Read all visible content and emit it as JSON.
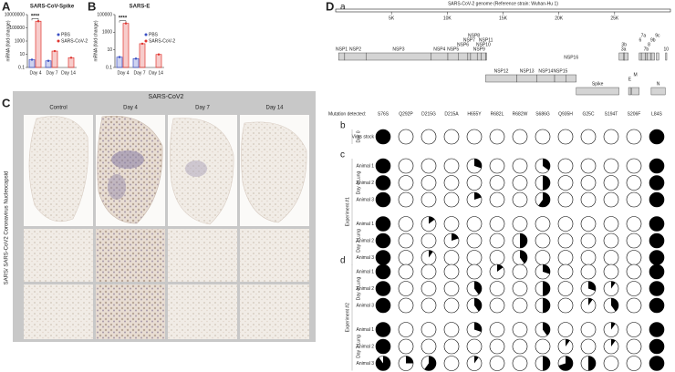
{
  "panel_labels": [
    "A",
    "B",
    "C",
    "D"
  ],
  "charts": [
    {
      "type": "bar",
      "title": "SARS-CoV-Spike",
      "ylabel": "mRNA (fold change)",
      "log": true,
      "categories": [
        "Day 4",
        "Day 7",
        "Day 14"
      ],
      "series": [
        {
          "name": "PBS",
          "color": "#3a4fc4",
          "values": [
            1.5,
            1,
            null
          ]
        },
        {
          "name": "SARS-CoV-2",
          "color": "#e0352f",
          "values": [
            1000000,
            30,
            3
          ]
        }
      ],
      "ylim": [
        0.1,
        10000000
      ],
      "yticks": [
        0.1,
        10,
        1000,
        100000,
        10000000
      ],
      "significance": "****"
    },
    {
      "type": "bar",
      "title": "SARS-E",
      "ylabel": "mRNA (fold change)",
      "log": true,
      "categories": [
        "Day 4",
        "Day 7",
        "Day 14"
      ],
      "series": [
        {
          "name": "PBS",
          "color": "#3a4fc4",
          "values": [
            1.5,
            1,
            null
          ]
        },
        {
          "name": "SARS-CoV-2",
          "color": "#e0352f",
          "values": [
            10000,
            50,
            3
          ]
        }
      ],
      "ylim": [
        0.1,
        100000
      ],
      "yticks": [
        0.1,
        10,
        1000,
        100000
      ],
      "significance": "****"
    }
  ],
  "histology": {
    "title": "SARS-CoV2",
    "columns": [
      "Control",
      "Day 4",
      "Day 7",
      "Day 14"
    ],
    "side_label": "SARS/ SARS-CoV2 Coronavirus Nucleocapsid"
  },
  "genome": {
    "label": "a",
    "title": "SARS-CoV-2 genome (Reference strain: Wuhan-Hu 1)",
    "xlim": [
      0,
      30000
    ],
    "xticks": [
      {
        "value": 5000,
        "label": "5K"
      },
      {
        "value": 10000,
        "label": "10K"
      },
      {
        "value": 15000,
        "label": "15K"
      },
      {
        "value": 20000,
        "label": "20K"
      },
      {
        "value": 25000,
        "label": "25K"
      }
    ],
    "genes": [
      {
        "name": "NSP1",
        "start": 266,
        "end": 805
      },
      {
        "name": "NSP2",
        "start": 806,
        "end": 2719
      },
      {
        "name": "NSP3",
        "start": 2720,
        "end": 8554
      },
      {
        "name": "NSP4",
        "start": 8555,
        "end": 10054
      },
      {
        "name": "NSP5",
        "start": 10055,
        "end": 10972
      },
      {
        "name": "NSP6",
        "start": 10973,
        "end": 11842
      },
      {
        "name": "NSP7",
        "start": 11843,
        "end": 12091
      },
      {
        "name": "NSP8",
        "start": 12092,
        "end": 12685
      },
      {
        "name": "NSP9",
        "start": 12686,
        "end": 13024
      },
      {
        "name": "NSP10",
        "start": 13025,
        "end": 13441
      },
      {
        "name": "NSP11",
        "start": 13442,
        "end": 13480
      },
      {
        "name": "NSP12",
        "start": 13442,
        "end": 16236
      },
      {
        "name": "NSP13",
        "start": 16237,
        "end": 18039
      },
      {
        "name": "NSP14",
        "start": 18040,
        "end": 19620
      },
      {
        "name": "NSP15",
        "start": 19621,
        "end": 20658
      },
      {
        "name": "NSP16",
        "start": 20659,
        "end": 21552
      },
      {
        "name": "Spike",
        "start": 21563,
        "end": 25384
      },
      {
        "name": "E",
        "start": 26245,
        "end": 26472
      },
      {
        "name": "M",
        "start": 26523,
        "end": 27191
      },
      {
        "name": "N",
        "start": 28274,
        "end": 29533
      },
      {
        "name": "3a",
        "start": 25393,
        "end": 26220
      },
      {
        "name": "3b",
        "start": 25814,
        "end": 25882
      },
      {
        "name": "6",
        "start": 27202,
        "end": 27387
      },
      {
        "name": "7a",
        "start": 27394,
        "end": 27759
      },
      {
        "name": "7b",
        "start": 27756,
        "end": 27887
      },
      {
        "name": "8",
        "start": 27894,
        "end": 28259
      },
      {
        "name": "9b",
        "start": 28284,
        "end": 28577
      },
      {
        "name": "9c",
        "start": 28734,
        "end": 28955
      },
      {
        "name": "10",
        "start": 29558,
        "end": 29674
      }
    ]
  },
  "mutations": {
    "header": "Mutation detected:",
    "names": [
      "S76S",
      "Q292P",
      "D215G",
      "D215A",
      "H655Y",
      "R682L",
      "R682W",
      "S686G",
      "Q935H",
      "G25C",
      "S194T",
      "S206F",
      "L84S"
    ],
    "subpanels": [
      {
        "label": "b",
        "groups": [
          {
            "label": "Day 0",
            "rows": [
              {
                "label": "Virus stock",
                "fractions": [
                  1,
                  0,
                  0,
                  0,
                  0,
                  0,
                  0,
                  0,
                  0,
                  0,
                  0,
                  0,
                  1
                ]
              }
            ]
          }
        ]
      },
      {
        "label": "c",
        "experiment": "Experiment #1",
        "groups": [
          {
            "label": "Day 4 Lung",
            "rows": [
              {
                "label": "Animal 1",
                "fractions": [
                  1,
                  0,
                  0,
                  0,
                  0.3,
                  0,
                  0,
                  0.35,
                  0,
                  0,
                  0,
                  0,
                  1
                ]
              },
              {
                "label": "Animal 2",
                "fractions": [
                  1,
                  0,
                  0,
                  0,
                  0,
                  0,
                  0,
                  0.5,
                  0,
                  0,
                  0,
                  0,
                  1
                ]
              },
              {
                "label": "Animal 3",
                "fractions": [
                  1,
                  0,
                  0,
                  0,
                  0.2,
                  0,
                  0,
                  0.6,
                  0,
                  0,
                  0,
                  0,
                  1
                ]
              }
            ]
          },
          {
            "label": "Day 7 Lung",
            "rows": [
              {
                "label": "Animal 1",
                "fractions": [
                  1,
                  0,
                  0.15,
                  0,
                  0,
                  0,
                  0,
                  0,
                  0,
                  0,
                  0,
                  0,
                  1
                ]
              },
              {
                "label": "Animal 2",
                "fractions": [
                  1,
                  0,
                  0,
                  0.2,
                  0,
                  0,
                  0.5,
                  0,
                  0,
                  0,
                  0,
                  0,
                  1
                ]
              },
              {
                "label": "Animal 3",
                "fractions": [
                  1,
                  0,
                  0.1,
                  0,
                  0,
                  0,
                  0.4,
                  0,
                  0,
                  0,
                  0,
                  0,
                  1
                ]
              }
            ]
          }
        ]
      },
      {
        "label": "d",
        "experiment": "Experiment #2",
        "groups": [
          {
            "label": "Day 4 Lung",
            "rows": [
              {
                "label": "Animal 1",
                "fractions": [
                  1,
                  0,
                  0,
                  0,
                  0,
                  0.15,
                  0,
                  0.3,
                  0,
                  0,
                  0,
                  0,
                  1
                ]
              },
              {
                "label": "Animal 2",
                "fractions": [
                  1,
                  0,
                  0,
                  0,
                  0.4,
                  0,
                  0,
                  0.5,
                  0,
                  0.3,
                  0.1,
                  0,
                  1
                ]
              },
              {
                "label": "Animal 3",
                "fractions": [
                  1,
                  0,
                  0,
                  0,
                  0.4,
                  0,
                  0,
                  0.5,
                  0,
                  0.1,
                  0.4,
                  0,
                  1
                ]
              }
            ]
          },
          {
            "label": "Day 7 Lung",
            "rows": [
              {
                "label": "Animal 1",
                "fractions": [
                  1,
                  0,
                  0,
                  0,
                  0.3,
                  0,
                  0,
                  0.4,
                  0,
                  0,
                  0.1,
                  0,
                  1
                ]
              },
              {
                "label": "Animal 2",
                "fractions": [
                  1,
                  0,
                  0,
                  0,
                  0,
                  0,
                  0,
                  0,
                  0.1,
                  0,
                  0.1,
                  0,
                  1
                ]
              },
              {
                "label": "Animal 3",
                "fractions": [
                  0.9,
                  0.25,
                  0.6,
                  0,
                  0.1,
                  0,
                  0,
                  0.5,
                  0.7,
                  0.5,
                  0,
                  0,
                  1
                ]
              }
            ]
          }
        ]
      }
    ]
  }
}
